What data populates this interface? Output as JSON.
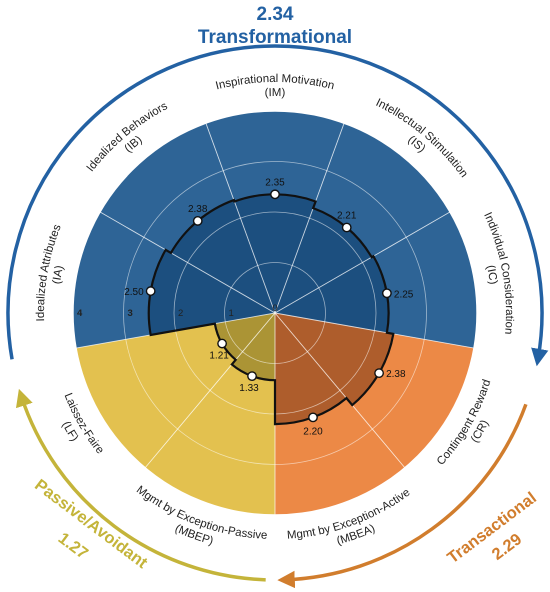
{
  "chart_data": {
    "type": "polar-bar",
    "rmax": 4,
    "ticks": [
      "0",
      "1",
      "2",
      "3",
      "4"
    ],
    "grid": true,
    "categories": [
      {
        "name": "Inspirational Motivation",
        "code": "(IM)",
        "value": 2.35,
        "value_label": "2.35",
        "group": "Transformational"
      },
      {
        "name": "Intellectual Stimulation",
        "code": "(IS)",
        "value": 2.21,
        "value_label": "2.21",
        "group": "Transformational"
      },
      {
        "name": "Individual Consideration",
        "code": "(IC)",
        "value": 2.25,
        "value_label": "2.25",
        "group": "Transformational"
      },
      {
        "name": "Contingent Reward",
        "code": "(CR)",
        "value": 2.38,
        "value_label": "2.38",
        "group": "Transactional"
      },
      {
        "name": "Mgmt by Exception-Active",
        "code": "(MBEA)",
        "value": 2.2,
        "value_label": "2.20",
        "group": "Transactional"
      },
      {
        "name": "Mgmt by Exception-Passive",
        "code": "(MBEP)",
        "value": 1.33,
        "value_label": "1.33",
        "group": "Passive/Avoidant"
      },
      {
        "name": "Laissez-Faire",
        "code": "(LF)",
        "value": 1.21,
        "value_label": "1.21",
        "group": "Passive/Avoidant"
      },
      {
        "name": "Idealized Attributes",
        "code": "(IA)",
        "value": 2.5,
        "value_label": "2.50",
        "group": "Transformational"
      },
      {
        "name": "Idealized Behaviors",
        "code": "(IB)",
        "value": 2.38,
        "value_label": "2.38",
        "group": "Transformational"
      }
    ],
    "groups": [
      {
        "name": "Transformational",
        "score": "2.34",
        "label_line1": "2.34",
        "label_line2": "Transformational",
        "color": "#2e6496",
        "dark": "#1b4d7d",
        "arc_color": "#2361a3"
      },
      {
        "name": "Transactional",
        "score": "2.29",
        "label_line1": "Transactional",
        "label_line2": "2.29",
        "color": "#ec8946",
        "dark": "#a8592a",
        "arc_color": "#d17d2d"
      },
      {
        "name": "Passive/Avoidant",
        "score": "1.27",
        "label_line1": "Passive/Avoidant",
        "label_line2": "1.27",
        "color": "#e3c14f",
        "dark": "#a69033",
        "arc_color": "#c4b43a"
      }
    ]
  }
}
